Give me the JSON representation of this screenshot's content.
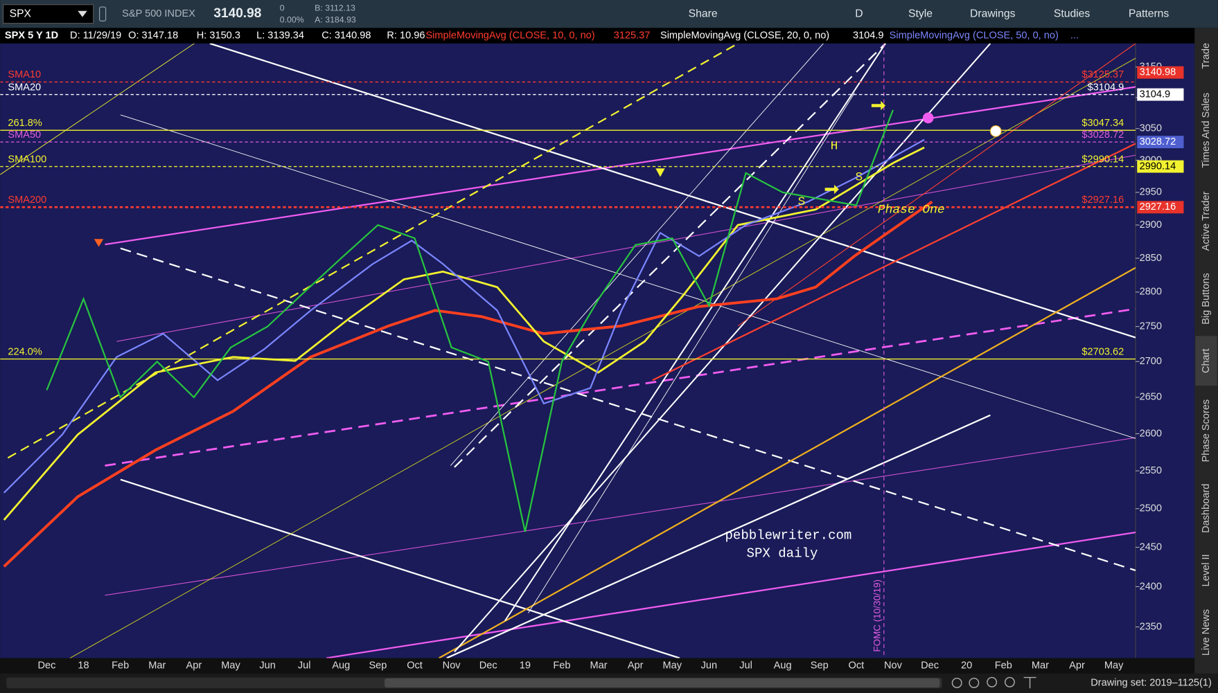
{
  "toolbar": {
    "symbol": "SPX",
    "description": "S&P 500 INDEX",
    "last": "3140.98",
    "change": "0",
    "change_pct": "0.00%",
    "bid": "B: 3112.13",
    "ask": "A: 3184.93",
    "buttons": [
      "Share",
      "D",
      "Style",
      "Drawings",
      "Studies",
      "Patterns"
    ]
  },
  "info_bar": {
    "items": [
      "SPX 5 Y 1D",
      "D: 11/29/19",
      "O: 3147.18",
      "H: 3150.3",
      "L: 3139.34",
      "C: 3140.98",
      "R: 10.96"
    ],
    "studies": [
      {
        "label": "SimpleMovingAvg (CLOSE, 10, 0, no)",
        "value": 3125.37,
        "color": "#ff3b30"
      },
      {
        "label": "SimpleMovingAvg (CLOSE, 20, 0, no)",
        "value": 3104.9,
        "color": "#ffffff"
      },
      {
        "label": "SimpleMovingAvg (CLOSE, 50, 0, no)",
        "value": "...",
        "color": "#7b86ff"
      }
    ]
  },
  "chart_data": {
    "type": "line",
    "log_scale": true,
    "categories": [
      "Dec",
      "18",
      "Feb",
      "Mar",
      "Apr",
      "May",
      "Jun",
      "Jul",
      "Aug",
      "Sep",
      "Oct",
      "Nov",
      "Dec",
      "19",
      "Feb",
      "Mar",
      "Apr",
      "May",
      "Jun",
      "Jul",
      "Aug",
      "Sep",
      "Oct",
      "Nov",
      "Dec",
      "20",
      "Feb",
      "Mar",
      "Apr",
      "May"
    ],
    "series": [
      {
        "color": "#27c43f",
        "values": [
          2660,
          2790,
          2650,
          2700,
          2650,
          2720,
          2750,
          2800,
          2850,
          2900,
          2880,
          2720,
          2700,
          2470,
          2700,
          2790,
          2870,
          2880,
          2780,
          2980,
          2950,
          2940,
          2930,
          3080,
          null,
          null,
          null,
          null,
          null,
          null
        ]
      }
    ],
    "ylim": [
      2312,
      3189
    ],
    "yticks": [
      2350,
      2400,
      2450,
      2500,
      2550,
      2600,
      2650,
      2700,
      2750,
      2800,
      2850,
      2900,
      2950,
      3000,
      3050,
      3100,
      3150
    ],
    "last_price": 3140.98,
    "last_price_color": "#e8322a",
    "levels": [
      {
        "name": "SMA10",
        "value": 3125.37,
        "label": "$3125.37",
        "color": "#ff3b30",
        "dashed": true
      },
      {
        "name": "SMA20",
        "value": 3104.9,
        "label": "$3104.9",
        "color": "#ffffff",
        "dashed": true,
        "badge_color": "#ffffff"
      },
      {
        "name": "261.8%",
        "value": 3047.34,
        "label": "$3047.34",
        "color": "#f2f230",
        "dashed": false
      },
      {
        "name": "SMA50",
        "value": 3028.72,
        "label": "$3028.72",
        "color": "#e25be2",
        "dashed": true,
        "badge_color": "#4f5fd0"
      },
      {
        "name": "SMA100",
        "value": 2990.14,
        "label": "$2990.14",
        "color": "#f2f230",
        "dashed": true,
        "badge_color": "#f2f230"
      },
      {
        "name": "SMA200",
        "value": 2927.16,
        "label": "$2927.16",
        "color": "#ff3b30",
        "dashed": true,
        "badge_color": "#e8322a"
      },
      {
        "name": "224.0%",
        "value": 2703.62,
        "label": "$2703.62",
        "color": "#f2f230",
        "dashed": false
      }
    ],
    "annotations": {
      "watermark": "pebblewriter.com",
      "subtitle": "SPX daily",
      "pattern": "Phase One",
      "head": "H",
      "shoulder_left": "S",
      "shoulder_right": "S",
      "event": "FOMC (10/30/19)"
    }
  },
  "sidebar": {
    "tabs": [
      "Trade",
      "Times And Sales",
      "Active Trader",
      "Big Buttons",
      "Chart",
      "Phase Scores",
      "Dashboard",
      "Level II",
      "Live News"
    ],
    "active": "Chart"
  },
  "status": {
    "drawing_set": "Drawing set: 2019–1125(1)"
  }
}
